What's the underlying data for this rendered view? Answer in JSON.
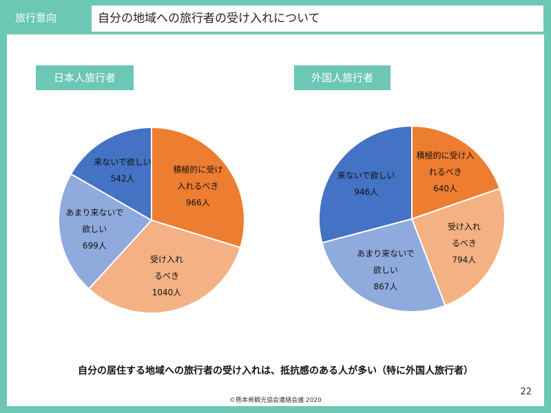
{
  "header": {
    "section_label": "旅行意向",
    "title": "自分の地域への旅行者の受け入れについて"
  },
  "chart_data": [
    {
      "type": "pie",
      "title": "日本人旅行者",
      "start_angle_deg": 0,
      "slices": [
        {
          "lines": [
            "積極的に受け",
            "入れるべき",
            "966人"
          ],
          "value": 966,
          "color": "#ed7d31"
        },
        {
          "lines": [
            "受け入れ",
            "るべき",
            "1040人"
          ],
          "value": 1040,
          "color": "#f4b183"
        },
        {
          "lines": [
            "あまり来ないで",
            "欲しい",
            "699人"
          ],
          "value": 699,
          "color": "#8faadc"
        },
        {
          "lines": [
            "来ないで欲しい",
            "542人"
          ],
          "value": 542,
          "color": "#4472c4"
        }
      ]
    },
    {
      "type": "pie",
      "title": "外国人旅行者",
      "start_angle_deg": 0,
      "slices": [
        {
          "lines": [
            "積極的に受け入",
            "れるべき",
            "640人"
          ],
          "value": 640,
          "color": "#ed7d31"
        },
        {
          "lines": [
            "受け入れ",
            "るべき",
            "794人"
          ],
          "value": 794,
          "color": "#f4b183"
        },
        {
          "lines": [
            "あまり来ないで",
            "欲しい",
            "867人"
          ],
          "value": 867,
          "color": "#8faadc"
        },
        {
          "lines": [
            "来ないで欲しい",
            "946人"
          ],
          "value": 946,
          "color": "#4472c4"
        }
      ]
    }
  ],
  "conclusion": "自分の居住する地域への旅行者の受け入れは、抵抗感のある人が多い（特に外国人旅行者）",
  "page_number": "22",
  "copyright": "©熊本県観光協会連絡会議 2020"
}
